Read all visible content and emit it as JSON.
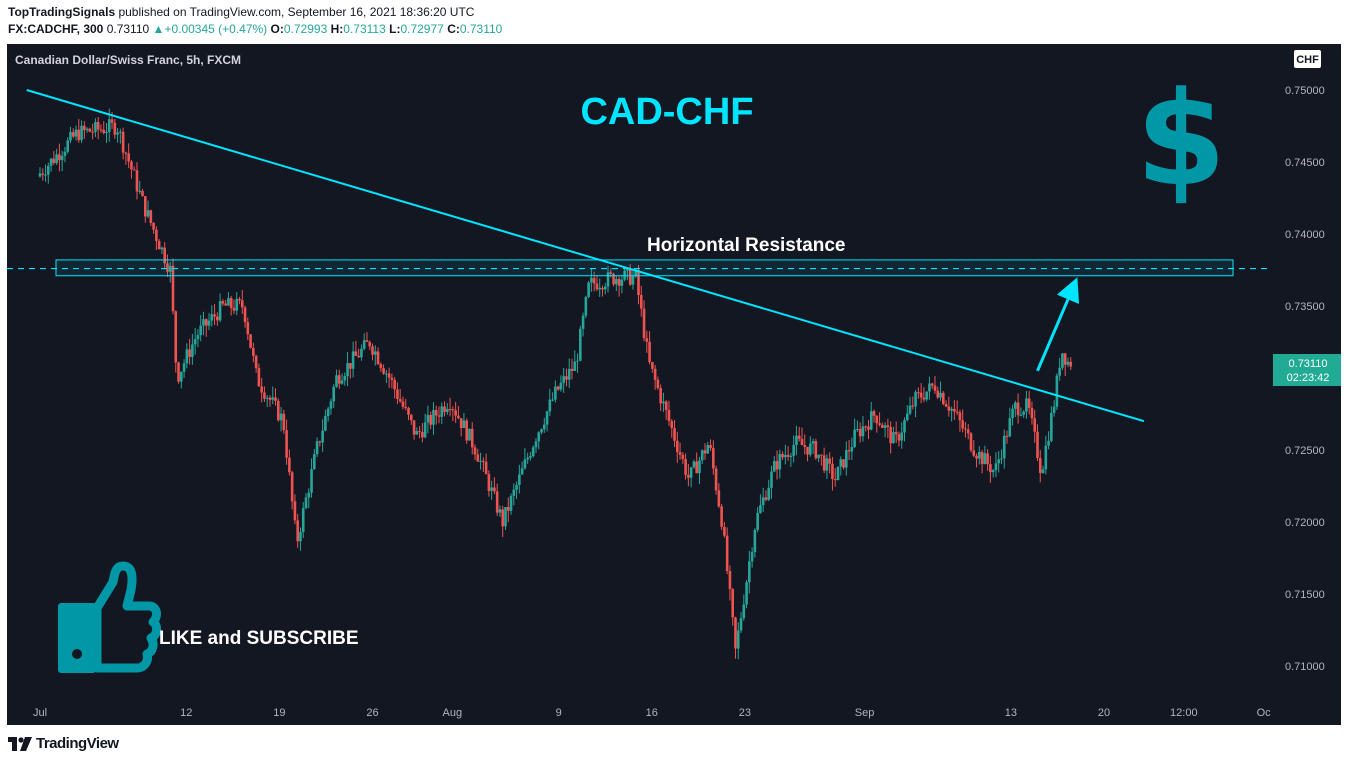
{
  "header": {
    "author": "TopTradingSignals",
    "published_text": " published on TradingView.com, September 16, 2021 18:36:20 UTC",
    "symbol": "FX:CADCHF, 300",
    "last": "0.73110",
    "change": "+0.00345 (+0.47%)",
    "o_label": "O:",
    "o_value": "0.72993",
    "h_label": "H:",
    "h_value": "0.73113",
    "l_label": "L:",
    "l_value": "0.72977",
    "c_label": "C:",
    "c_value": "0.73110"
  },
  "footer": {
    "brand": "TradingView",
    "logo_icon": "tradingview-logo-icon"
  },
  "colors": {
    "background": "#131722",
    "bull": "#26a69a",
    "bear": "#ef5350",
    "cyan": "#00e5ff",
    "dollar": "#0097a7",
    "axis_text": "#b2b5be",
    "price_label": "#22ab94"
  },
  "chart_data": {
    "type": "candlestick",
    "symbol_title": "Canadian Dollar/Swiss Franc, 5h, FXCM",
    "currency_badge": "CHF",
    "annotations": {
      "title": "CAD-CHF",
      "resistance_label": "Horizontal Resistance",
      "cta": "LIKE and SUBSCRIBE",
      "dollar": "$"
    },
    "y_ticks": [
      "0.75000",
      "0.74500",
      "0.74000",
      "0.73500",
      "0.73000",
      "0.72500",
      "0.72000",
      "0.71500",
      "0.71000"
    ],
    "y_tick_values": [
      0.75,
      0.745,
      0.74,
      0.735,
      0.73,
      0.725,
      0.72,
      0.715,
      0.71
    ],
    "x_ticks": [
      "Jul",
      "12",
      "19",
      "26",
      "Aug",
      "9",
      "16",
      "23",
      "Sep",
      "13",
      "20",
      "12:00",
      "Oc"
    ],
    "x_tick_days": [
      0,
      11,
      18,
      25,
      31,
      39,
      46,
      53,
      62,
      73,
      80,
      86,
      92
    ],
    "last_price": "0.73110",
    "countdown": "02:23:42",
    "resistance_zone": [
      0.7371,
      0.7382
    ],
    "resistance_level": 0.7376,
    "trendline": {
      "start": {
        "day": -1,
        "price": 0.75
      },
      "end": {
        "day": 83,
        "price": 0.727
      }
    },
    "arrow": {
      "from": {
        "day": 75,
        "price": 0.7305
      },
      "to": {
        "day": 78,
        "price": 0.737
      }
    },
    "key_points": [
      {
        "day": 0,
        "price": 0.744
      },
      {
        "day": 3,
        "price": 0.747
      },
      {
        "day": 6,
        "price": 0.7475
      },
      {
        "day": 8,
        "price": 0.742
      },
      {
        "day": 10,
        "price": 0.7375
      },
      {
        "day": 10.5,
        "price": 0.73
      },
      {
        "day": 12,
        "price": 0.733
      },
      {
        "day": 14,
        "price": 0.735
      },
      {
        "day": 15.5,
        "price": 0.735
      },
      {
        "day": 16.5,
        "price": 0.73
      },
      {
        "day": 18.5,
        "price": 0.727
      },
      {
        "day": 19.5,
        "price": 0.7185
      },
      {
        "day": 21,
        "price": 0.725
      },
      {
        "day": 22.5,
        "price": 0.73
      },
      {
        "day": 25,
        "price": 0.7325
      },
      {
        "day": 26.5,
        "price": 0.73
      },
      {
        "day": 28.5,
        "price": 0.726
      },
      {
        "day": 31,
        "price": 0.7285
      },
      {
        "day": 33,
        "price": 0.725
      },
      {
        "day": 35,
        "price": 0.72
      },
      {
        "day": 37.5,
        "price": 0.726
      },
      {
        "day": 39,
        "price": 0.729
      },
      {
        "day": 40.5,
        "price": 0.731
      },
      {
        "day": 41.5,
        "price": 0.7365
      },
      {
        "day": 43.5,
        "price": 0.737
      },
      {
        "day": 45,
        "price": 0.737
      },
      {
        "day": 46,
        "price": 0.731
      },
      {
        "day": 47.5,
        "price": 0.727
      },
      {
        "day": 49,
        "price": 0.723
      },
      {
        "day": 50.5,
        "price": 0.7255
      },
      {
        "day": 51.5,
        "price": 0.72
      },
      {
        "day": 52.5,
        "price": 0.711
      },
      {
        "day": 54,
        "price": 0.72
      },
      {
        "day": 55.5,
        "price": 0.724
      },
      {
        "day": 57,
        "price": 0.7255
      },
      {
        "day": 58.5,
        "price": 0.725
      },
      {
        "day": 60,
        "price": 0.723
      },
      {
        "day": 61.5,
        "price": 0.726
      },
      {
        "day": 63,
        "price": 0.7275
      },
      {
        "day": 64.5,
        "price": 0.7255
      },
      {
        "day": 66,
        "price": 0.7285
      },
      {
        "day": 67.5,
        "price": 0.7295
      },
      {
        "day": 69,
        "price": 0.7275
      },
      {
        "day": 70.5,
        "price": 0.725
      },
      {
        "day": 72,
        "price": 0.7235
      },
      {
        "day": 73.5,
        "price": 0.728
      },
      {
        "day": 74.5,
        "price": 0.728
      },
      {
        "day": 75.5,
        "price": 0.7235
      },
      {
        "day": 76.5,
        "price": 0.7285
      },
      {
        "day": 77,
        "price": 0.732
      },
      {
        "day": 77.5,
        "price": 0.7311
      }
    ]
  }
}
